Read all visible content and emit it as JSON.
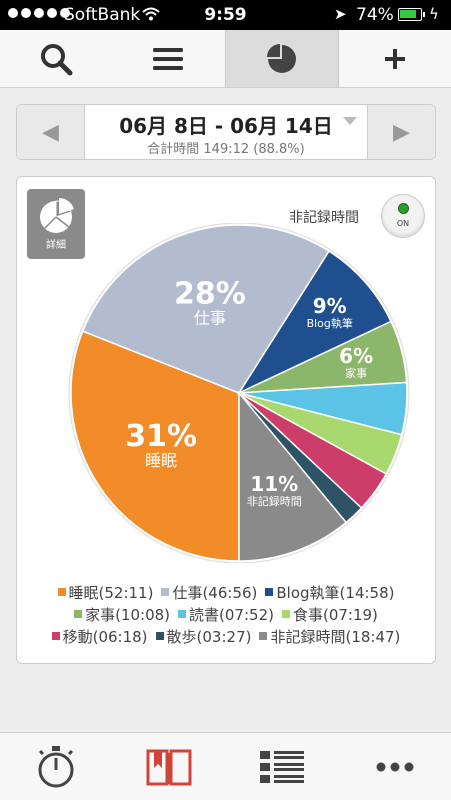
{
  "status": {
    "carrier": "SoftBank",
    "time": "9:59",
    "battery": "74%"
  },
  "header": {
    "date_range": "06月 8日 - 06月 14日",
    "total": "合計時間 149:12 (88.8%)"
  },
  "card": {
    "detail_label": "詳細",
    "unrecorded_label": "非記録時間",
    "toggle_label": "ON"
  },
  "colors": {
    "accent_red": "#d0453a",
    "toggle_led": "#2c9e2c"
  },
  "chart_data": {
    "type": "pie",
    "slices": [
      {
        "name": "睡眠",
        "time": "52:11",
        "pct": 31,
        "pct_label": "31%",
        "color": "#f28c28",
        "show_label": true
      },
      {
        "name": "仕事",
        "time": "46:56",
        "pct": 28,
        "pct_label": "28%",
        "color": "#b3bccf",
        "show_label": true
      },
      {
        "name": "Blog執筆",
        "time": "14:58",
        "pct": 9,
        "pct_label": "9%",
        "color": "#1f4f8f",
        "show_label": true
      },
      {
        "name": "家事",
        "time": "10:08",
        "pct": 6,
        "pct_label": "6%",
        "color": "#8cb66a",
        "show_label": true
      },
      {
        "name": "読書",
        "time": "07:52",
        "pct": 5,
        "pct_label": "",
        "color": "#5bc3e6",
        "show_label": false
      },
      {
        "name": "食事",
        "time": "07:19",
        "pct": 4,
        "pct_label": "",
        "color": "#a9d86e",
        "show_label": false
      },
      {
        "name": "移動",
        "time": "06:18",
        "pct": 4,
        "pct_label": "",
        "color": "#cc3d6a",
        "show_label": false
      },
      {
        "name": "散歩",
        "time": "03:27",
        "pct": 2,
        "pct_label": "",
        "color": "#2e5366",
        "show_label": false
      },
      {
        "name": "非記録時間",
        "time": "18:47",
        "pct": 11,
        "pct_label": "11%",
        "color": "#8a8a8a",
        "show_label": true
      }
    ]
  },
  "legend": {
    "rows": [
      [
        {
          "label": "睡眠(52:11)",
          "color": "#f28c28"
        },
        {
          "label": "仕事(46:56)",
          "color": "#b3bccf"
        },
        {
          "label": "Blog執筆(14:58)",
          "color": "#1f4f8f"
        }
      ],
      [
        {
          "label": "家事(10:08)",
          "color": "#8cb66a"
        },
        {
          "label": "読書(07:52)",
          "color": "#5bc3e6"
        },
        {
          "label": "食事(07:19)",
          "color": "#a9d86e"
        }
      ],
      [
        {
          "label": "移動(06:18)",
          "color": "#cc3d6a"
        },
        {
          "label": "散歩(03:27)",
          "color": "#2e5366"
        },
        {
          "label": "非記録時間(18:47)",
          "color": "#8a8a8a"
        }
      ]
    ]
  },
  "toolbar": {
    "icons": [
      "search-icon",
      "menu-icon",
      "pie-chart-icon",
      "add-icon"
    ]
  },
  "tabbar": {
    "icons": [
      "stopwatch-icon",
      "book-icon",
      "list-icon",
      "more-icon"
    ]
  }
}
